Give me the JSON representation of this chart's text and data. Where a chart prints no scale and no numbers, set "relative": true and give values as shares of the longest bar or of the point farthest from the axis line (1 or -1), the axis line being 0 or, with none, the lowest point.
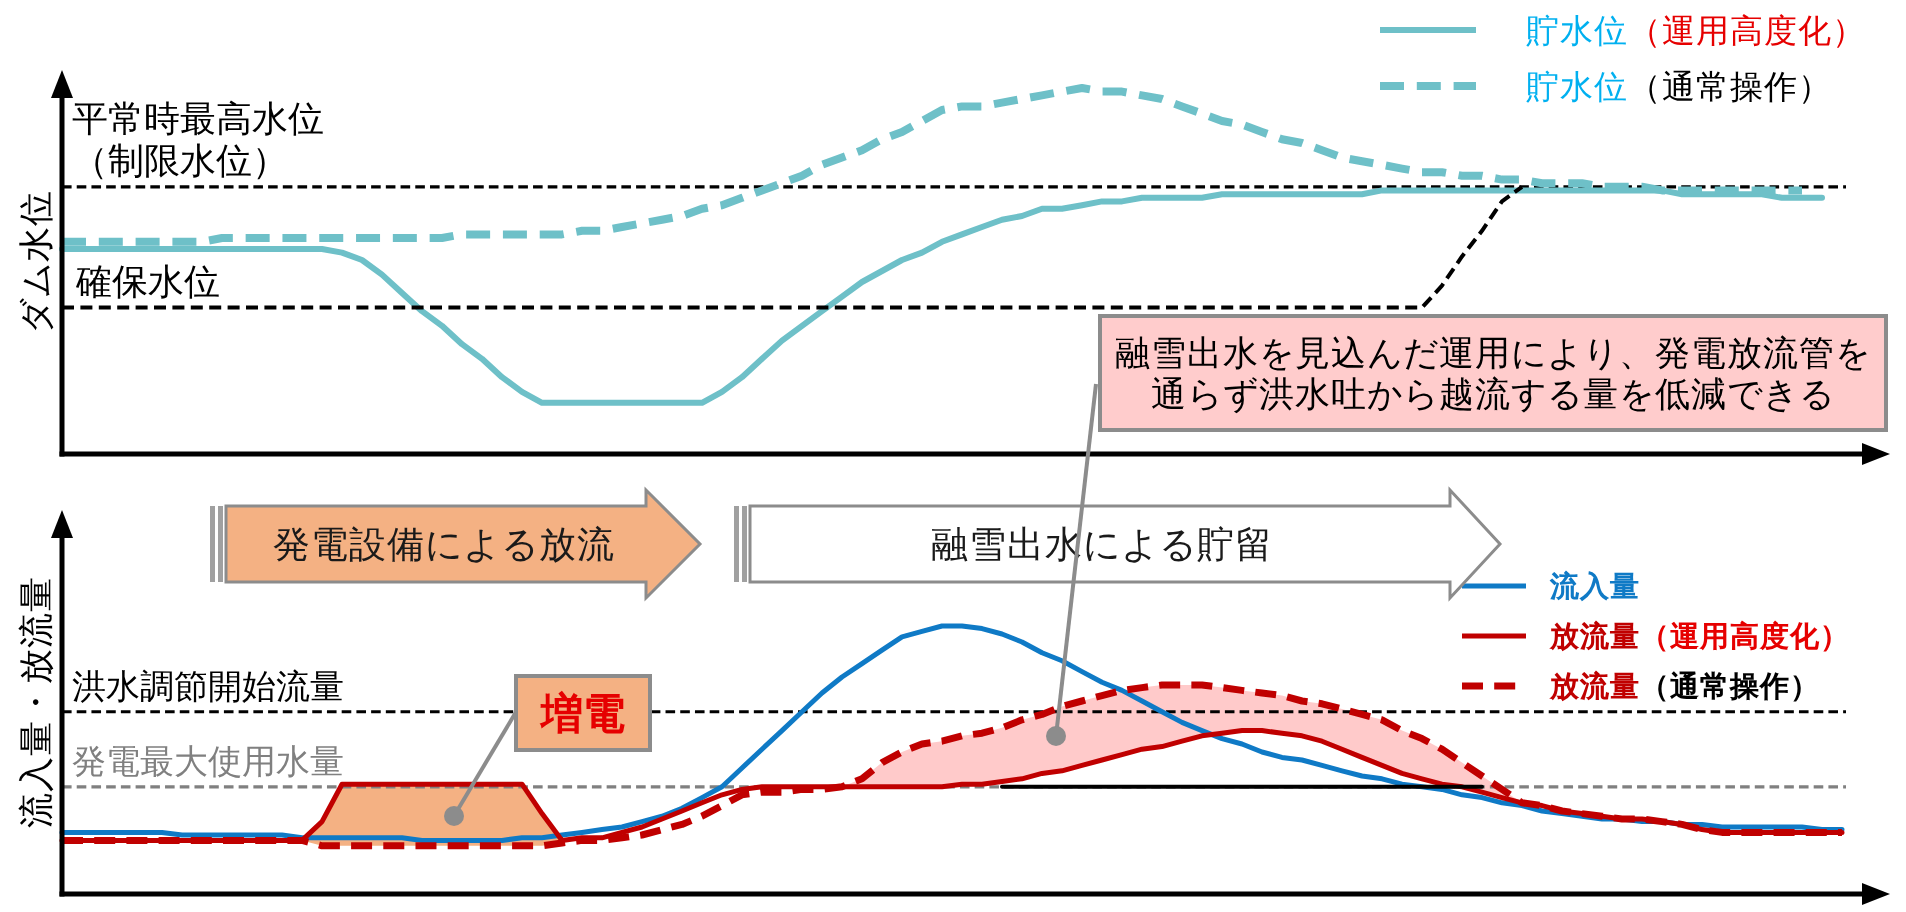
{
  "chart_data": [
    {
      "type": "line",
      "relative": true,
      "ylabel": "ダム水位",
      "legend": "top right",
      "categories": [
        null,
        null,
        null,
        null,
        null,
        null,
        null,
        null,
        null,
        null,
        null,
        null,
        null,
        null,
        null,
        null,
        null,
        null,
        null,
        null,
        null,
        null,
        null,
        null,
        null,
        null,
        null,
        null,
        null,
        null,
        null,
        null,
        null,
        null,
        null,
        null,
        null,
        null,
        null,
        null,
        null,
        null,
        null,
        null,
        null,
        null,
        null,
        null,
        null,
        null,
        null,
        null,
        null,
        null,
        null,
        null,
        null,
        null,
        null,
        null,
        null,
        null,
        null,
        null,
        null,
        null,
        null,
        null,
        null,
        null,
        null,
        null,
        null,
        null,
        null,
        null,
        null,
        null,
        null,
        null,
        null,
        null,
        null,
        null,
        null,
        null,
        null,
        null,
        null,
        null
      ],
      "series": [
        {
          "name": "貯水位（運用高度化）",
          "color": "#6ec0c8",
          "line_style": "solid",
          "values": [
            0.56,
            0.56,
            0.56,
            0.56,
            0.56,
            0.56,
            0.56,
            0.56,
            0.56,
            0.56,
            0.56,
            0.56,
            0.56,
            0.56,
            0.55,
            0.53,
            0.49,
            0.44,
            0.39,
            0.35,
            0.3,
            0.26,
            0.21,
            0.17,
            0.14,
            0.14,
            0.14,
            0.14,
            0.14,
            0.14,
            0.14,
            0.14,
            0.14,
            0.17,
            0.21,
            0.26,
            0.31,
            0.35,
            0.39,
            0.43,
            0.47,
            0.5,
            0.53,
            0.55,
            0.58,
            0.6,
            0.62,
            0.64,
            0.65,
            0.67,
            0.67,
            0.68,
            0.69,
            0.69,
            0.7,
            0.7,
            0.7,
            0.7,
            0.71,
            0.71,
            0.71,
            0.71,
            0.71,
            0.71,
            0.71,
            0.71,
            0.72,
            0.72,
            0.72,
            0.72,
            0.72,
            0.72,
            0.72,
            0.72,
            0.72,
            0.72,
            0.72,
            0.72,
            0.72,
            0.72,
            0.72,
            0.71,
            0.71,
            0.71,
            0.71,
            0.71,
            0.7,
            0.7,
            0.7,
            null
          ]
        },
        {
          "name": "貯水位（通常操作）",
          "color": "#6ec0c8",
          "line_style": "dashed",
          "values": [
            0.58,
            0.58,
            0.58,
            0.58,
            0.58,
            0.58,
            0.58,
            0.58,
            0.59,
            0.59,
            0.59,
            0.59,
            0.59,
            0.59,
            0.59,
            0.59,
            0.59,
            0.59,
            0.59,
            0.59,
            0.6,
            0.6,
            0.6,
            0.6,
            0.6,
            0.6,
            0.61,
            0.61,
            0.62,
            0.63,
            0.64,
            0.65,
            0.67,
            0.68,
            0.7,
            0.72,
            0.74,
            0.76,
            0.79,
            0.81,
            0.83,
            0.86,
            0.88,
            0.91,
            0.94,
            0.95,
            0.95,
            0.96,
            0.97,
            0.98,
            0.99,
            1.0,
            0.99,
            0.99,
            0.98,
            0.97,
            0.95,
            0.93,
            0.91,
            0.9,
            0.88,
            0.86,
            0.85,
            0.83,
            0.81,
            0.8,
            0.79,
            0.78,
            0.77,
            0.77,
            0.76,
            0.76,
            0.75,
            0.75,
            0.74,
            0.74,
            0.74,
            0.73,
            0.73,
            0.73,
            0.72,
            0.72,
            0.72,
            0.72,
            0.72,
            0.72,
            0.72,
            0.72,
            null,
            null
          ]
        },
        {
          "color": "#000000",
          "line_style": "dashed",
          "values": [
            0.4,
            0.4,
            0.4,
            0.4,
            0.4,
            0.4,
            0.4,
            0.4,
            0.4,
            0.4,
            0.4,
            0.4,
            0.4,
            0.4,
            0.4,
            0.4,
            0.4,
            0.4,
            0.4,
            0.4,
            0.4,
            0.4,
            0.4,
            0.4,
            0.4,
            0.4,
            0.4,
            0.4,
            0.4,
            0.4,
            0.4,
            0.4,
            0.4,
            0.4,
            0.4,
            0.4,
            0.4,
            0.4,
            0.4,
            0.4,
            0.4,
            0.4,
            0.4,
            0.4,
            0.4,
            0.4,
            0.4,
            0.4,
            0.4,
            0.4,
            0.4,
            0.4,
            0.4,
            0.4,
            0.4,
            0.4,
            0.4,
            0.4,
            0.4,
            0.4,
            0.4,
            0.4,
            0.4,
            0.4,
            0.4,
            0.4,
            0.4,
            0.4,
            0.4,
            0.46,
            0.54,
            0.61,
            0.69,
            0.73,
            null,
            null,
            null,
            null,
            null,
            null,
            null,
            null,
            null,
            null,
            null,
            null,
            null,
            null,
            null,
            null
          ]
        }
      ],
      "ref_lines": [
        {
          "axis": "y",
          "value": 0.73,
          "label": "平常時最高水位（制限水位）",
          "color": "#000000",
          "line_style": "dashed"
        }
      ],
      "annotations": [
        {
          "text": "確保水位",
          "y": 0.4
        }
      ]
    },
    {
      "type": "line",
      "relative": true,
      "ylabel": "流入量・放流量",
      "legend": "top right",
      "categories": [
        null,
        null,
        null,
        null,
        null,
        null,
        null,
        null,
        null,
        null,
        null,
        null,
        null,
        null,
        null,
        null,
        null,
        null,
        null,
        null,
        null,
        null,
        null,
        null,
        null,
        null,
        null,
        null,
        null,
        null,
        null,
        null,
        null,
        null,
        null,
        null,
        null,
        null,
        null,
        null,
        null,
        null,
        null,
        null,
        null,
        null,
        null,
        null,
        null,
        null,
        null,
        null,
        null,
        null,
        null,
        null,
        null,
        null,
        null,
        null,
        null,
        null,
        null,
        null,
        null,
        null,
        null,
        null,
        null,
        null,
        null,
        null,
        null,
        null,
        null,
        null,
        null,
        null,
        null,
        null,
        null,
        null,
        null,
        null,
        null,
        null,
        null,
        null,
        null,
        null
      ],
      "series": [
        {
          "name": "流入量",
          "color": "#0f7ac6",
          "line_style": "solid",
          "values": [
            0.23,
            0.23,
            0.23,
            0.23,
            0.23,
            0.23,
            0.22,
            0.22,
            0.22,
            0.22,
            0.22,
            0.22,
            0.21,
            0.21,
            0.21,
            0.21,
            0.21,
            0.21,
            0.2,
            0.2,
            0.2,
            0.2,
            0.2,
            0.21,
            0.21,
            0.22,
            0.23,
            0.24,
            0.25,
            0.27,
            0.29,
            0.32,
            0.36,
            0.4,
            0.47,
            0.54,
            0.61,
            0.68,
            0.75,
            0.81,
            0.86,
            0.91,
            0.96,
            0.98,
            1.0,
            1.0,
            0.99,
            0.97,
            0.94,
            0.9,
            0.87,
            0.83,
            0.79,
            0.76,
            0.72,
            0.68,
            0.64,
            0.61,
            0.58,
            0.56,
            0.53,
            0.51,
            0.5,
            0.48,
            0.46,
            0.44,
            0.43,
            0.41,
            0.4,
            0.39,
            0.37,
            0.36,
            0.34,
            0.33,
            0.31,
            0.3,
            0.29,
            0.28,
            0.28,
            0.27,
            0.27,
            0.26,
            0.26,
            0.25,
            0.25,
            0.25,
            0.25,
            0.25,
            0.24,
            0.24
          ]
        },
        {
          "name": "放流量（運用高度化）",
          "color": "#c00000",
          "line_style": "solid",
          "values": [
            0.2,
            0.2,
            0.2,
            0.2,
            0.2,
            0.2,
            0.2,
            0.2,
            0.2,
            0.2,
            0.2,
            0.2,
            0.2,
            0.27,
            0.41,
            0.41,
            0.41,
            0.41,
            0.41,
            0.41,
            0.41,
            0.41,
            0.41,
            0.41,
            0.3,
            0.2,
            0.21,
            0.21,
            0.23,
            0.25,
            0.28,
            0.31,
            0.34,
            0.37,
            0.39,
            0.4,
            0.4,
            0.4,
            0.4,
            0.4,
            0.4,
            0.4,
            0.4,
            0.4,
            0.4,
            0.41,
            0.41,
            0.42,
            0.43,
            0.45,
            0.46,
            0.48,
            0.5,
            0.52,
            0.54,
            0.55,
            0.57,
            0.59,
            0.6,
            0.61,
            0.61,
            0.6,
            0.59,
            0.57,
            0.54,
            0.51,
            0.48,
            0.45,
            0.43,
            0.41,
            0.4,
            0.38,
            0.36,
            0.34,
            0.33,
            0.31,
            0.3,
            0.29,
            0.28,
            0.28,
            0.27,
            0.26,
            0.24,
            0.23,
            0.23,
            0.23,
            0.23,
            0.23,
            0.23,
            0.23
          ],
          "lower": [
            null,
            null,
            null,
            null,
            null,
            null,
            null,
            null,
            null,
            null,
            null,
            null,
            0.2,
            0.18,
            0.18,
            0.18,
            0.18,
            0.18,
            0.18,
            0.18,
            0.18,
            0.18,
            0.18,
            0.18,
            0.18,
            0.19,
            null,
            null,
            null,
            null,
            null,
            null,
            null,
            null,
            null,
            null,
            null,
            null,
            null,
            null,
            null,
            null,
            null,
            null,
            null,
            null,
            null,
            null,
            null,
            null,
            null,
            null,
            null,
            null,
            null,
            null,
            null,
            null,
            null,
            null,
            null,
            null,
            null,
            null,
            null,
            null,
            null,
            null,
            null,
            null,
            null,
            null,
            null,
            null,
            null,
            null,
            null,
            null,
            null,
            null,
            null,
            null,
            null,
            null,
            null,
            null,
            null,
            null,
            null,
            null
          ],
          "upper": [
            null,
            null,
            null,
            null,
            null,
            null,
            null,
            null,
            null,
            null,
            null,
            null,
            0.2,
            0.27,
            0.41,
            0.41,
            0.41,
            0.41,
            0.41,
            0.41,
            0.41,
            0.41,
            0.41,
            0.41,
            0.3,
            0.2,
            null,
            null,
            null,
            null,
            null,
            null,
            null,
            null,
            null,
            null,
            null,
            null,
            null,
            null,
            null,
            null,
            null,
            null,
            null,
            null,
            null,
            null,
            null,
            null,
            null,
            null,
            null,
            null,
            null,
            null,
            null,
            null,
            null,
            null,
            null,
            null,
            null,
            null,
            null,
            null,
            null,
            null,
            null,
            null,
            null,
            null,
            null,
            null,
            null,
            null,
            null,
            null,
            null,
            null,
            null,
            null,
            null,
            null,
            null,
            null,
            null,
            null,
            null,
            null
          ]
        },
        {
          "name": "放流量（通常操作）",
          "color": "#c00000",
          "line_style": "dashed",
          "values": [
            0.2,
            0.2,
            0.2,
            0.2,
            0.2,
            0.2,
            0.2,
            0.2,
            0.2,
            0.2,
            0.2,
            0.2,
            0.2,
            0.18,
            0.18,
            0.18,
            0.18,
            0.18,
            0.18,
            0.18,
            0.18,
            0.18,
            0.18,
            0.18,
            0.18,
            0.19,
            0.2,
            0.2,
            0.21,
            0.22,
            0.24,
            0.26,
            0.29,
            0.33,
            0.37,
            0.38,
            0.38,
            0.39,
            0.39,
            0.4,
            0.43,
            0.49,
            0.53,
            0.56,
            0.57,
            0.59,
            0.6,
            0.62,
            0.65,
            0.67,
            0.7,
            0.72,
            0.74,
            0.76,
            0.77,
            0.78,
            0.78,
            0.78,
            0.77,
            0.76,
            0.75,
            0.74,
            0.72,
            0.71,
            0.69,
            0.67,
            0.65,
            0.61,
            0.58,
            0.54,
            0.49,
            0.44,
            0.39,
            0.34,
            0.33,
            0.31,
            0.3,
            0.29,
            0.28,
            0.28,
            0.27,
            0.26,
            0.24,
            0.23,
            0.23,
            0.23,
            0.23,
            0.23,
            0.23,
            0.23
          ],
          "lower": [
            null,
            null,
            null,
            null,
            null,
            null,
            null,
            null,
            null,
            null,
            null,
            null,
            null,
            null,
            null,
            null,
            null,
            null,
            null,
            null,
            null,
            null,
            null,
            null,
            null,
            null,
            null,
            null,
            null,
            null,
            null,
            null,
            null,
            null,
            null,
            null,
            null,
            null,
            null,
            0.4,
            0.4,
            0.4,
            0.4,
            0.4,
            0.4,
            0.41,
            0.41,
            0.42,
            0.43,
            0.45,
            0.46,
            0.48,
            0.5,
            0.52,
            0.54,
            0.55,
            0.57,
            0.59,
            0.6,
            0.61,
            0.61,
            0.6,
            0.59,
            0.57,
            0.54,
            0.51,
            0.48,
            0.45,
            0.43,
            0.41,
            0.4,
            0.38,
            0.36,
            0.34,
            null,
            null,
            null,
            null,
            null,
            null,
            null,
            null,
            null,
            null,
            null,
            null,
            null,
            null,
            null,
            null
          ],
          "upper": [
            null,
            null,
            null,
            null,
            null,
            null,
            null,
            null,
            null,
            null,
            null,
            null,
            null,
            null,
            null,
            null,
            null,
            null,
            null,
            null,
            null,
            null,
            null,
            null,
            null,
            null,
            null,
            null,
            null,
            null,
            null,
            null,
            null,
            null,
            null,
            null,
            null,
            null,
            null,
            0.4,
            0.43,
            0.49,
            0.53,
            0.56,
            0.57,
            0.59,
            0.6,
            0.62,
            0.65,
            0.67,
            0.7,
            0.72,
            0.74,
            0.76,
            0.77,
            0.78,
            0.78,
            0.78,
            0.77,
            0.76,
            0.75,
            0.74,
            0.72,
            0.71,
            0.69,
            0.67,
            0.65,
            0.61,
            0.58,
            0.54,
            0.49,
            0.44,
            0.39,
            0.34,
            null,
            null,
            null,
            null,
            null,
            null,
            null,
            null,
            null,
            null,
            null,
            null,
            null,
            null,
            null,
            null
          ]
        },
        {
          "color": "#000000",
          "line_style": "solid",
          "values": [
            null,
            null,
            null,
            null,
            null,
            null,
            null,
            null,
            null,
            null,
            null,
            null,
            null,
            null,
            null,
            null,
            null,
            null,
            null,
            null,
            null,
            null,
            null,
            null,
            null,
            null,
            null,
            null,
            null,
            null,
            null,
            null,
            null,
            null,
            null,
            null,
            null,
            null,
            null,
            null,
            null,
            null,
            null,
            null,
            null,
            null,
            null,
            0.4,
            0.4,
            0.4,
            0.4,
            0.4,
            0.4,
            0.4,
            0.4,
            0.4,
            0.4,
            0.4,
            0.4,
            0.4,
            0.4,
            0.4,
            0.4,
            0.4,
            0.4,
            0.4,
            0.4,
            0.4,
            0.4,
            0.4,
            0.4,
            0.4,
            null,
            null,
            null,
            null,
            null,
            null,
            null,
            null,
            null,
            null,
            null,
            null,
            null,
            null,
            null,
            null,
            null,
            null
          ]
        }
      ],
      "ref_lines": [
        {
          "axis": "y",
          "value": 0.68,
          "label": "洪水調節開始流量",
          "color": "#000000",
          "line_style": "dashed"
        },
        {
          "axis": "y",
          "value": 0.4,
          "label": "発電最大使用水量",
          "color": "#808080",
          "line_style": "dashed"
        }
      ],
      "annotations": [
        "発電設備による放流",
        "融雪出水による貯留",
        "増電",
        "融雪出水を見込んだ運用により、発電放流管を通らず洪水吐から越流する量を低減できる"
      ]
    }
  ]
}
